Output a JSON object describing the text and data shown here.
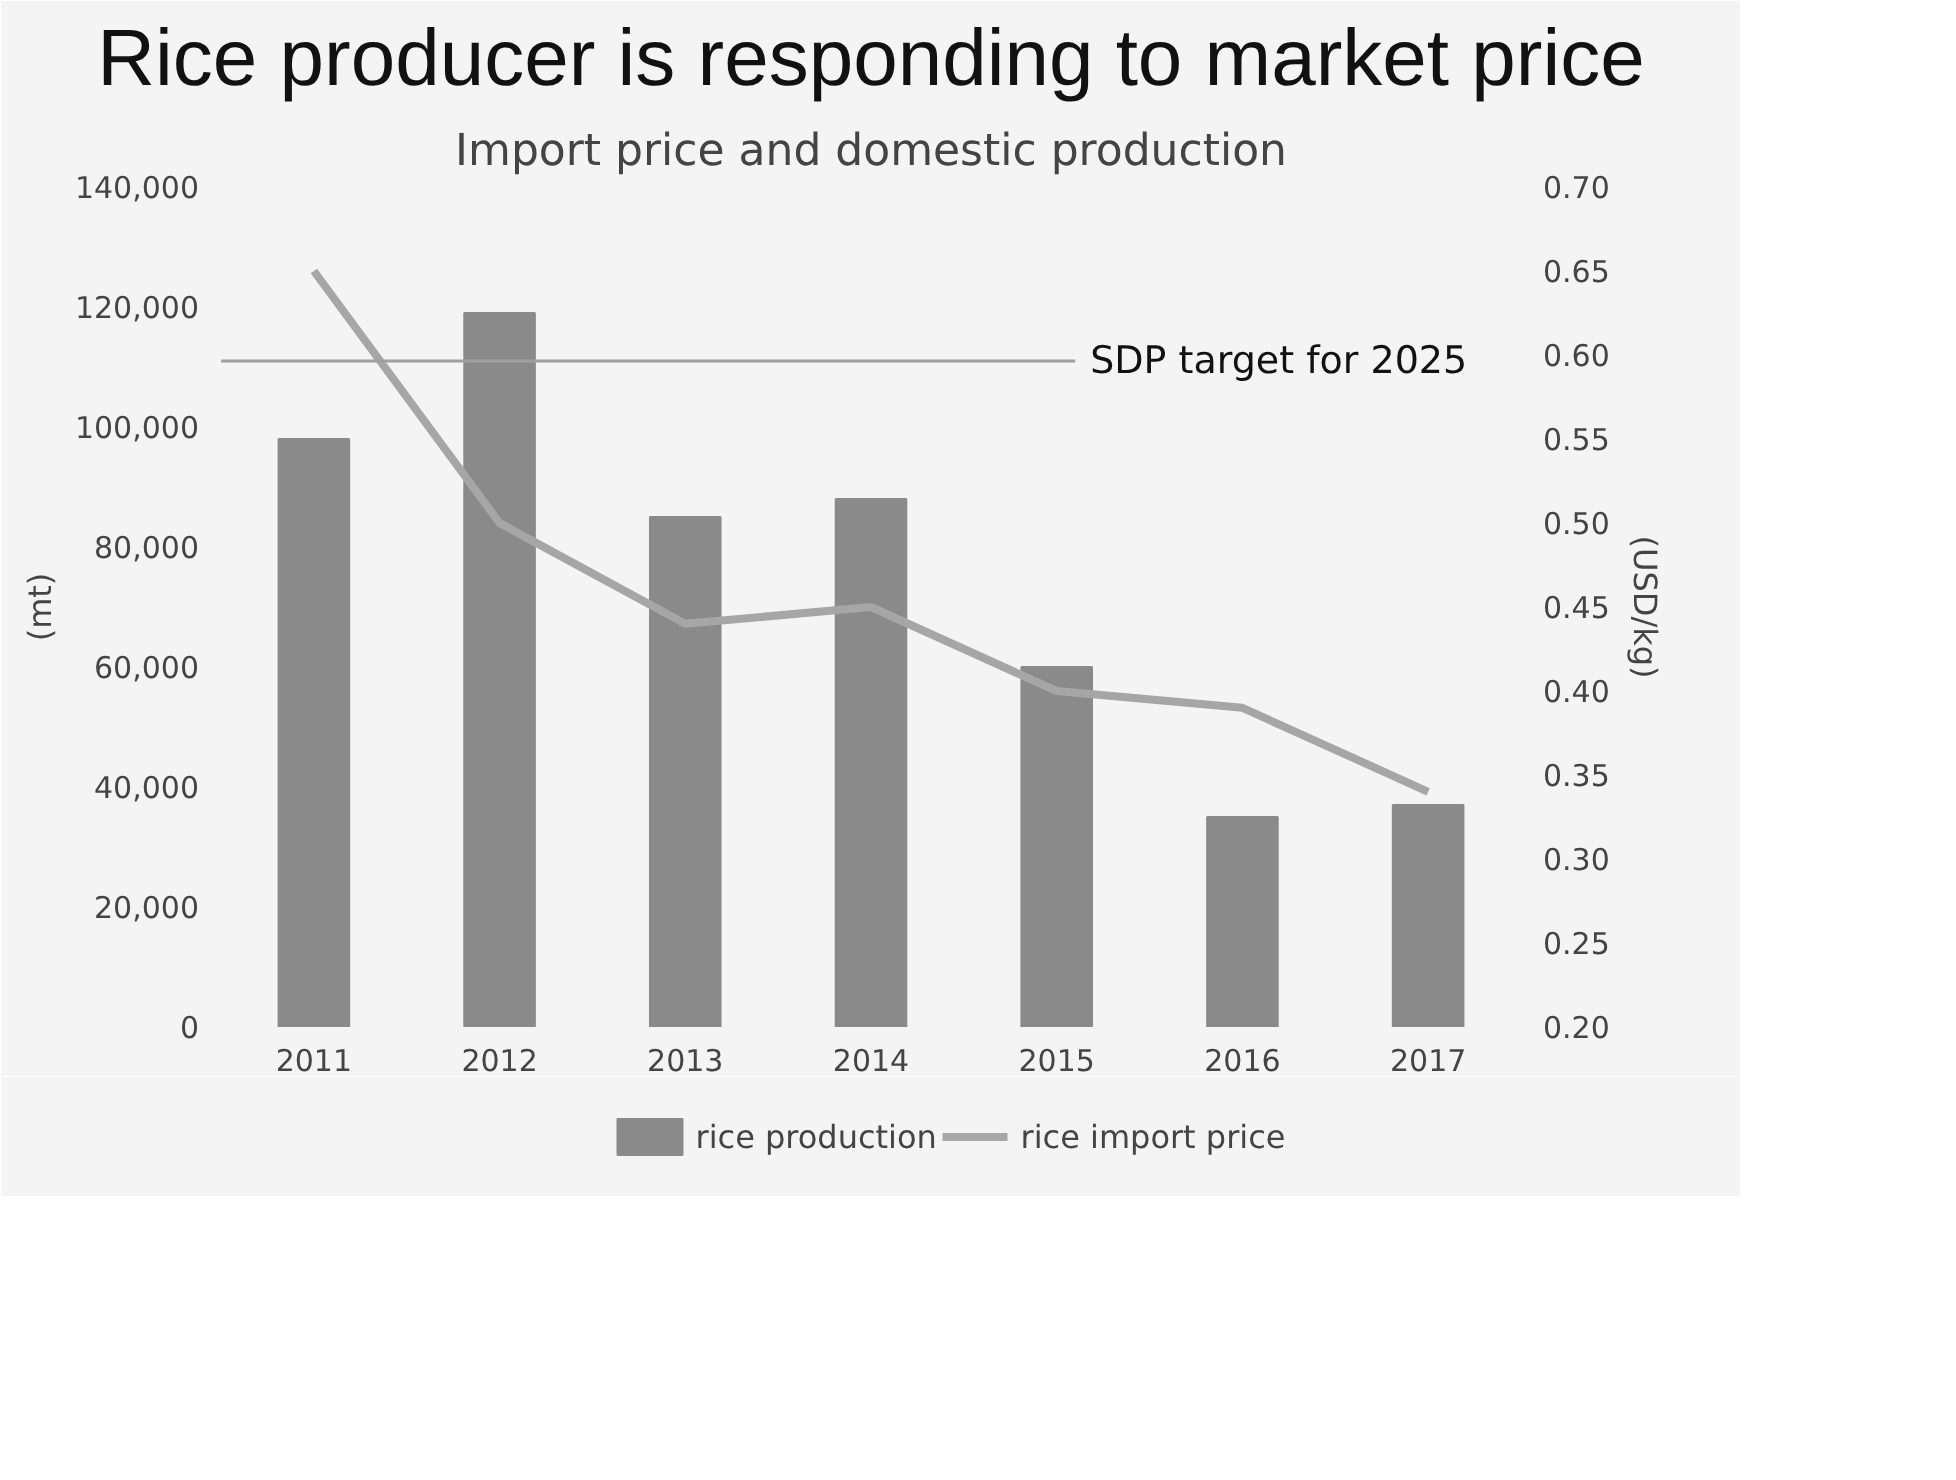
{
  "chart_data": {
    "type": "bar",
    "title": "Rice producer is responding to market price",
    "subtitle": "Import price and domestic production",
    "categories": [
      "2011",
      "2012",
      "2013",
      "2014",
      "2015",
      "2016",
      "2017"
    ],
    "ylabel": "(mt)",
    "y2label": "(USD/kg)",
    "series": [
      {
        "name": "rice production",
        "color": "#8a8a8a",
        "values": [
          98000,
          119000,
          85000,
          88000,
          60000,
          35000,
          37000
        ]
      },
      {
        "name": "rice import price",
        "type": "line",
        "axis": "y2",
        "color": "#a6a6a6",
        "values": [
          0.65,
          0.5,
          0.44,
          0.45,
          0.4,
          0.39,
          0.34
        ]
      }
    ],
    "ylim": [
      0,
      140000
    ],
    "yticks": [
      0,
      {
        "value": 20000,
        "label": "20,000"
      },
      {
        "value": 40000,
        "label": "40,000"
      },
      {
        "value": 60000,
        "label": "60,000"
      },
      {
        "value": 80000,
        "label": "80,000"
      },
      {
        "value": 100000,
        "label": "100,000"
      },
      {
        "value": 120000,
        "label": "120,000"
      },
      {
        "value": 140000,
        "label": "140,000"
      }
    ],
    "y2lim": [
      0.2,
      0.7
    ],
    "y2ticks": [
      {
        "value": 0.2,
        "label": "0.20"
      },
      {
        "value": 0.25,
        "label": "0.25"
      },
      {
        "value": 0.3,
        "label": "0.30"
      },
      {
        "value": 0.35,
        "label": "0.35"
      },
      {
        "value": 0.4,
        "label": "0.40"
      },
      {
        "value": 0.45,
        "label": "0.45"
      },
      {
        "value": 0.5,
        "label": "0.50"
      },
      {
        "value": 0.55,
        "label": "0.55"
      },
      {
        "value": 0.6,
        "label": "0.60"
      },
      {
        "value": 0.65,
        "label": "0.65"
      },
      {
        "value": 0.7,
        "label": "0.70"
      }
    ],
    "ref_lines": [
      {
        "axis": "y",
        "value": 111000,
        "label": "SDP target for 2025",
        "color": "#a0a0a0"
      }
    ],
    "grid": false,
    "legend": "bottom"
  }
}
